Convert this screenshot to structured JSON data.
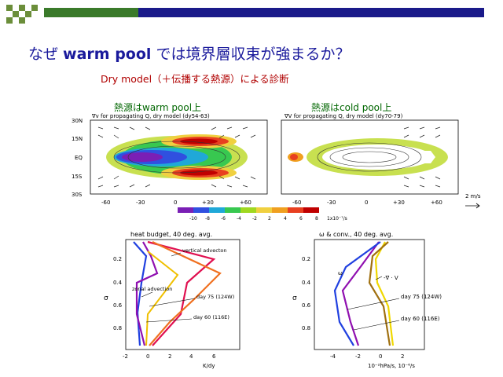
{
  "slide": {
    "title_part1": "なぜ ",
    "title_en": "warm pool",
    "title_part2": " では境界層収束が強まるか？",
    "subtitle": "Dry model（＋伝播する熱源）による診断"
  },
  "maps": {
    "left_caption": "熱源はwarm pool上",
    "right_caption": "熱源はcold pool上",
    "left_header": "∇v for propagating Q, dry model (dy54-63)",
    "right_header": "∇V for propagating Q, dry model (dy70-79)",
    "lat_ticks": [
      "30N",
      "15N",
      "EQ",
      "15S",
      "30S"
    ],
    "lon_ticks": [
      "-60",
      "-30",
      "0",
      "+30",
      "+60"
    ],
    "vector_scale": "2 m/s",
    "colorbar_ticks": [
      "-10",
      "-8",
      "-6",
      "-4",
      "-2",
      "2",
      "4",
      "6",
      "8"
    ],
    "colorbar_unit": "1x10⁻⁷/s",
    "colorbar_colors": [
      "#7a1fb5",
      "#3050e0",
      "#20a8d8",
      "#38c850",
      "#a0d820",
      "#f0d040",
      "#f0a020",
      "#e84020",
      "#c00000"
    ]
  },
  "profiles": {
    "left": {
      "title": "heat budget, 40 deg. avg.",
      "y_ticks": [
        "0.2",
        "0.4",
        "0.6",
        "0.8"
      ],
      "x_ticks": [
        "-2",
        "0",
        "2",
        "4",
        "6"
      ],
      "y_label": "σ",
      "x_label": "K/dy",
      "annotations": {
        "vertical": "vertical advecton",
        "zonal": "zonal advection",
        "day75": "day 75 (124W)",
        "day60": "day 60 (116E)"
      }
    },
    "right": {
      "title": "ω & conv., 40 deg. avg.",
      "y_ticks": [
        "0.2",
        "0.4",
        "0.6",
        "0.8"
      ],
      "x_ticks": [
        "-4",
        "-2",
        "0",
        "2"
      ],
      "y_label": "σ",
      "x_label": "10⁻²hPa/s, 10⁻⁶/s",
      "annotations": {
        "omega": "ω",
        "conv": "-∇ · V",
        "day75": "day 75 (124W)",
        "day60": "day 60 (116E)"
      }
    }
  },
  "colors": {
    "title": "#1a1a9c",
    "subtitle": "#b00000",
    "caption": "#006600",
    "deco_green": "#5a8f2a"
  }
}
